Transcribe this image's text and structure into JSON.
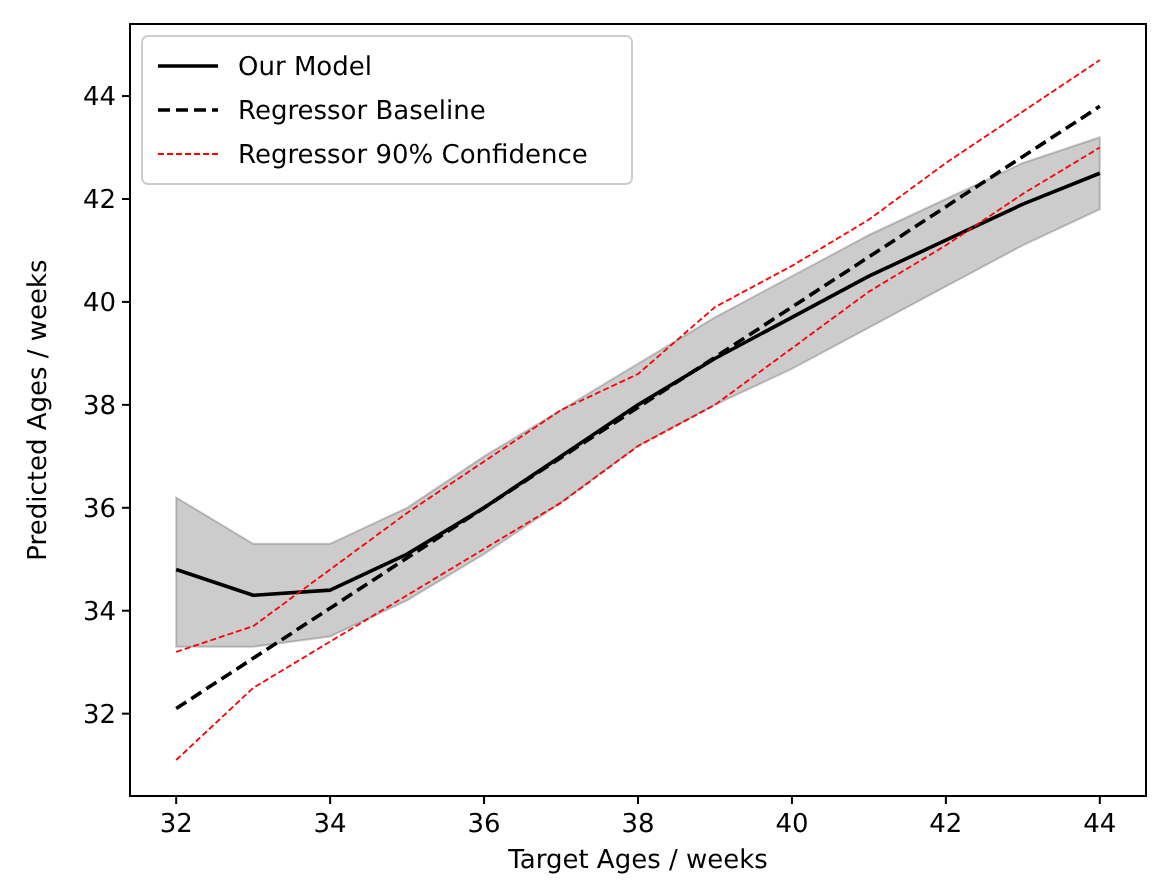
{
  "chart_data": {
    "type": "line",
    "xlabel": "Target Ages / weeks",
    "ylabel": "Predicted Ages / weeks",
    "x": [
      32,
      33,
      34,
      35,
      36,
      37,
      38,
      39,
      40,
      41,
      42,
      43,
      44
    ],
    "series": [
      {
        "name": "Our Model",
        "color": "#000000",
        "line_style": "solid",
        "values": [
          34.8,
          34.3,
          34.4,
          35.1,
          36.0,
          37.0,
          38.0,
          38.9,
          39.7,
          40.5,
          41.2,
          41.9,
          42.5
        ],
        "lower": [
          33.3,
          33.3,
          33.5,
          34.2,
          35.1,
          36.1,
          37.2,
          38.0,
          38.7,
          39.5,
          40.3,
          41.1,
          41.8
        ],
        "upper": [
          36.2,
          35.3,
          35.3,
          36.0,
          37.0,
          37.9,
          38.8,
          39.7,
          40.5,
          41.3,
          42.0,
          42.7,
          43.2
        ]
      },
      {
        "name": "Regressor Baseline",
        "color": "#000000",
        "line_style": "dashed",
        "x": [
          32,
          44
        ],
        "values": [
          32.1,
          43.8
        ]
      },
      {
        "name": "Regressor 90% Confidence",
        "color": "#ff0000",
        "line_style": "dotted",
        "values": [
          33.2,
          33.7,
          34.8,
          35.9,
          36.9,
          37.9,
          38.6,
          39.9,
          40.7,
          41.6,
          42.7,
          43.7,
          44.7
        ]
      },
      {
        "color": "#ff0000",
        "line_style": "dotted",
        "values": [
          31.1,
          32.5,
          33.4,
          34.3,
          35.2,
          36.1,
          37.2,
          38.0,
          39.1,
          40.2,
          41.1,
          42.1,
          43.0
        ]
      }
    ],
    "xlim": [
      31.4,
      44.6
    ],
    "ylim": [
      30.4,
      45.4
    ],
    "xticks": [
      32,
      34,
      36,
      38,
      40,
      42,
      44
    ],
    "yticks": [
      32,
      34,
      36,
      38,
      40,
      42,
      44
    ],
    "grid": false,
    "legend": "top left"
  }
}
